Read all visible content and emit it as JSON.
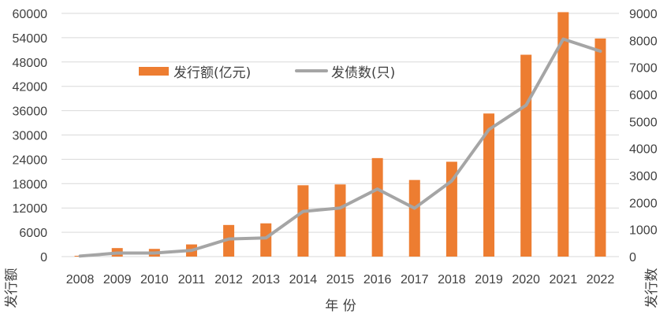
{
  "chart_data": {
    "type": "bar+line",
    "categories": [
      "2008",
      "2009",
      "2010",
      "2011",
      "2012",
      "2013",
      "2014",
      "2015",
      "2016",
      "2017",
      "2018",
      "2019",
      "2020",
      "2021",
      "2022"
    ],
    "series": [
      {
        "name": "发行额(亿元)",
        "type": "bar",
        "axis": "left",
        "color": "#ed7d31",
        "values": [
          200,
          2100,
          1900,
          3000,
          7800,
          8200,
          17600,
          17800,
          24300,
          18900,
          23400,
          35300,
          49800,
          60300,
          53800
        ]
      },
      {
        "name": "发债数(只)",
        "type": "line",
        "axis": "right",
        "color": "#a5a5a5",
        "values": [
          20,
          130,
          130,
          230,
          650,
          690,
          1670,
          1800,
          2500,
          1790,
          2800,
          4700,
          5600,
          8050,
          7600
        ]
      }
    ],
    "y_left": {
      "label": "发行额",
      "min": 0,
      "max": 60000,
      "ticks": [
        "60000",
        "54000",
        "48000",
        "42000",
        "36000",
        "30000",
        "24000",
        "18000",
        "12000",
        "6000",
        "0"
      ]
    },
    "y_right": {
      "label": "发行数",
      "min": 0,
      "max": 9000,
      "ticks": [
        "9000",
        "8000",
        "7000",
        "6000",
        "5000",
        "4000",
        "3000",
        "2000",
        "1000",
        "0"
      ]
    },
    "xlabel": "年 份",
    "grid": true,
    "legend": "top-left"
  }
}
